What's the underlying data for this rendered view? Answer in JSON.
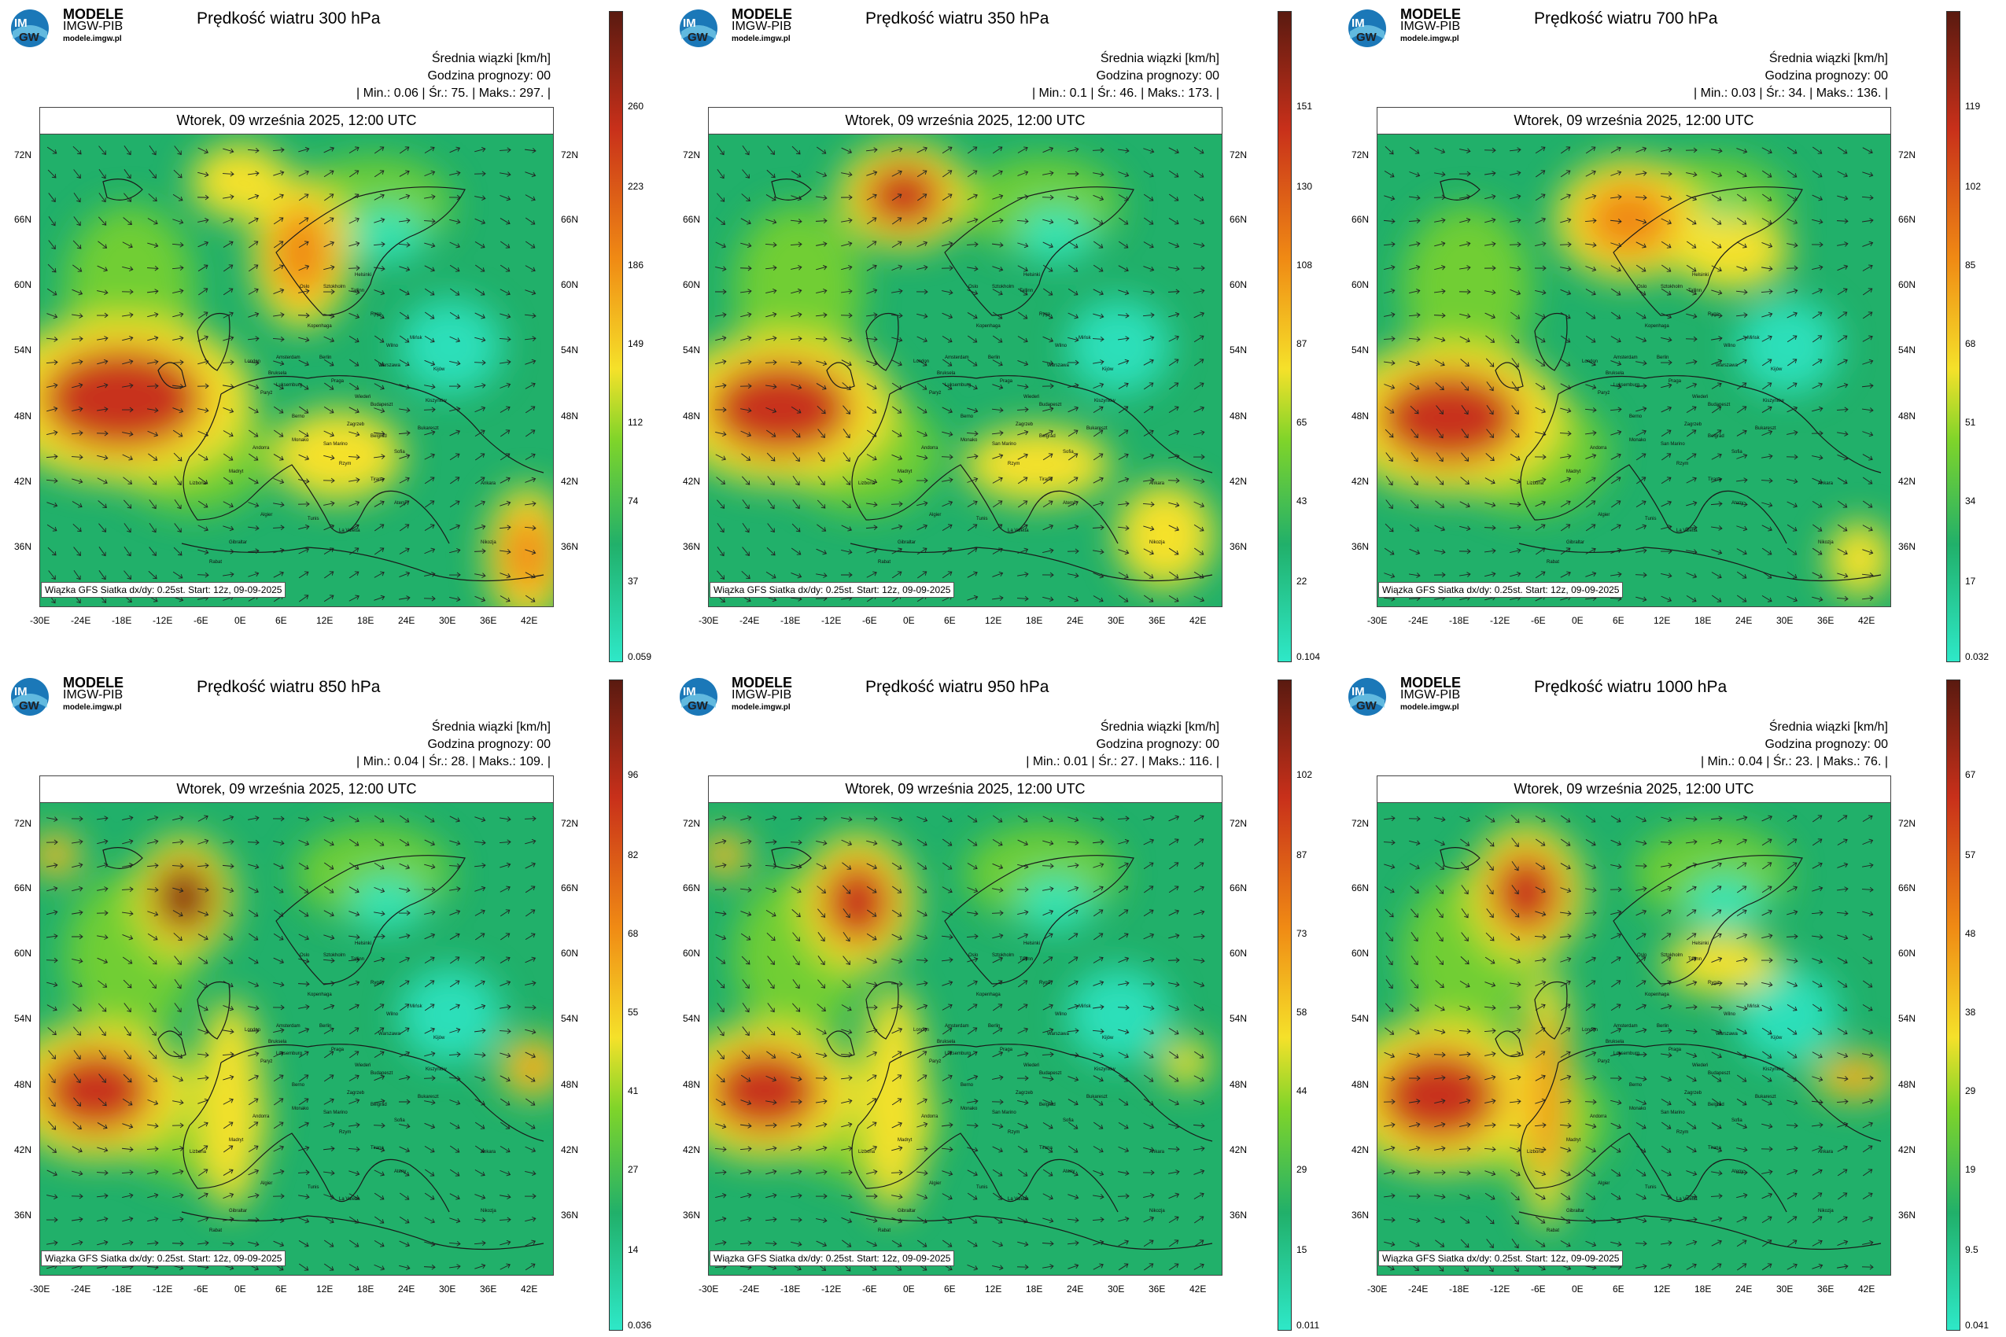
{
  "logo": {
    "brand": "MODELE",
    "org": "IMGW-PIB",
    "url": "modele.imgw.pl",
    "icon": "imgw-logo-icon"
  },
  "stat_labels": {
    "mean": "Średnia wiązki [km/h]",
    "forecast_hour": "Godzina prognozy: 00"
  },
  "date": "Wtorek, 09 września 2025, 12:00 UTC",
  "footer": "Wiązka GFS Siatka dx/dy: 0.25st. Start: 12z, 09-09-2025",
  "lat_labels_left": [
    "72N",
    "66N",
    "60N",
    "54N",
    "48N",
    "42N",
    "36N"
  ],
  "lat_labels_right": [
    "72N",
    "66N",
    "60N",
    "54N",
    "48N",
    "42N",
    "36N"
  ],
  "lon_labels": [
    "-30E",
    "-24E",
    "-18E",
    "-12E",
    "-6E",
    "0E",
    "6E",
    "12E",
    "18E",
    "24E",
    "30E",
    "36E",
    "42E"
  ],
  "colors": {
    "calm": "#2ee8c8",
    "low": "#21b06a",
    "mid": "#7fd42a",
    "yellow": "#f5e12a",
    "orange": "#f08a14",
    "red": "#c8301a",
    "max": "#5a1a10"
  },
  "panels": [
    {
      "title": "Prędkość wiatru 300 hPa",
      "minmax": "| Min.:   0.06 | Śr.:    75. | Maks.:   297. |",
      "scale": [
        "260",
        "223",
        "186",
        "149",
        "112",
        "74",
        "37",
        "0.059"
      ]
    },
    {
      "title": "Prędkość wiatru 350 hPa",
      "minmax": "| Min.:    0.1 | Śr.:    46. | Maks.:   173. |",
      "scale": [
        "151",
        "130",
        "108",
        "87",
        "65",
        "43",
        "22",
        "0.104"
      ]
    },
    {
      "title": "Prędkość wiatru 700 hPa",
      "minmax": "| Min.:   0.03 | Śr.:    34. | Maks.:   136. |",
      "scale": [
        "119",
        "102",
        "85",
        "68",
        "51",
        "34",
        "17",
        "0.032"
      ]
    },
    {
      "title": "Prędkość wiatru 850 hPa",
      "minmax": "| Min.:   0.04 | Śr.:    28. | Maks.:   109. |",
      "scale": [
        "96",
        "82",
        "68",
        "55",
        "41",
        "27",
        "14",
        "0.036"
      ]
    },
    {
      "title": "Prędkość wiatru 950 hPa",
      "minmax": "| Min.:   0.01 | Śr.:    27. | Maks.:   116. |",
      "scale": [
        "102",
        "87",
        "73",
        "58",
        "44",
        "29",
        "15",
        "0.011"
      ]
    },
    {
      "title": "Prędkość wiatru 1000 hPa",
      "minmax": "| Min.:   0.04 | Śr.:    23. | Maks.:    76. |",
      "scale": [
        "67",
        "57",
        "48",
        "38",
        "29",
        "19",
        "9.5",
        "0.041"
      ]
    }
  ],
  "cities": [
    "Helsinki",
    "Sztokholm",
    "Tallinn",
    "Oslo",
    "Ryga",
    "Wilno",
    "Kopenhaga",
    "Mińsk",
    "Amsterdam",
    "Berlin",
    "Warszawa",
    "Kijów",
    "London",
    "Bruksela",
    "Paryż",
    "Praga",
    "Luksemburg",
    "Wiedeń",
    "Budapeszt",
    "Kiszyniów",
    "Berno",
    "Zagrzeb",
    "Belgrad",
    "Bukareszt",
    "Andorra",
    "Monako",
    "San Marino",
    "Sofia",
    "Rzym",
    "Madryt",
    "Lizbona",
    "Tirana",
    "Ateny",
    "Ankara",
    "Algier",
    "Tunis",
    "La Valetta",
    "Gibraltar",
    "Rabat",
    "Nikozja"
  ]
}
